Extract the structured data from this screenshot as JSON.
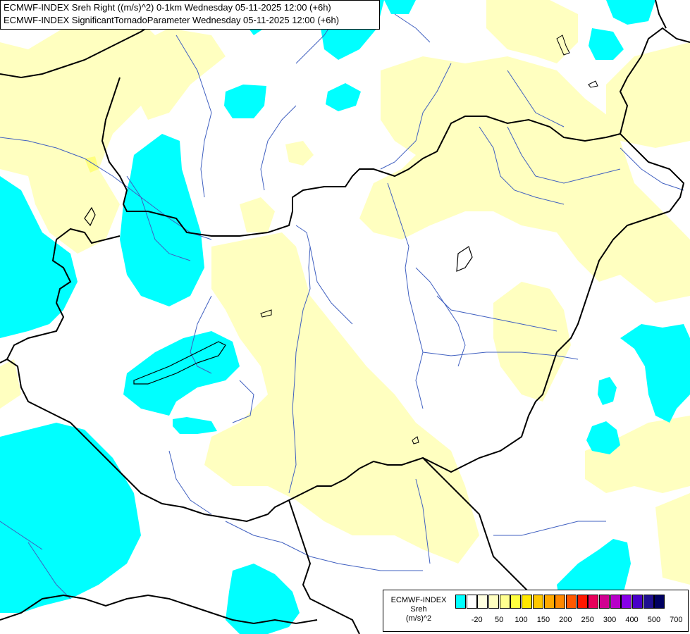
{
  "header": {
    "line1": "ECMWF-INDEX Sreh Right ((m/s)^2) 0-1km Wednesday 05-11-2025 12:00 (+6h)",
    "line2": "ECMWF-INDEX SignificantTornadoParameter Wednesday 05-11-2025 12:00 (+6h)"
  },
  "colors": {
    "cyan": "#00ffff",
    "light_yellow": "#ffffc0",
    "border": "#000000",
    "river": "#4060c0",
    "background": "#ffffff"
  },
  "legend": {
    "title_line1": "ECMWF-INDEX",
    "title_line2": "Sreh",
    "title_line3": "(m/s)^2",
    "swatch_colors": [
      "#00ffff",
      "#ffffff",
      "#ffffe0",
      "#ffffc0",
      "#ffff90",
      "#ffff40",
      "#ffe800",
      "#ffc800",
      "#ffa800",
      "#ff8800",
      "#ff5800",
      "#ff1800",
      "#e8005a",
      "#d00090",
      "#b800c8",
      "#8800e8",
      "#4800c8",
      "#201090",
      "#000060"
    ],
    "ticks": [
      "-20",
      "50",
      "100",
      "150",
      "200",
      "250",
      "300",
      "400",
      "500",
      "700"
    ]
  }
}
